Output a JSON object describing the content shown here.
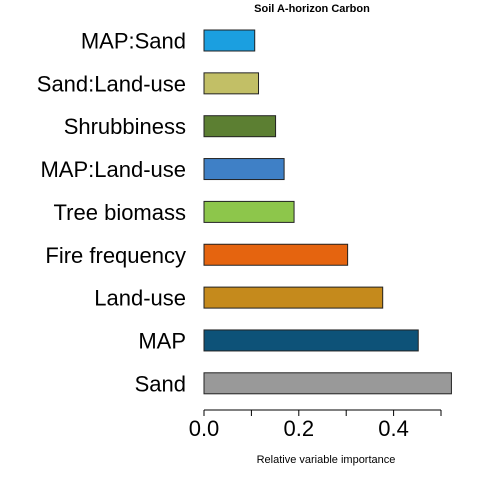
{
  "chart_data": {
    "type": "bar",
    "orientation": "horizontal",
    "title": "Soil A-horizon Carbon",
    "xlabel": "Relative variable importance",
    "ylabel": "",
    "xlim": [
      0,
      0.52
    ],
    "xticks": [
      0.0,
      0.1,
      0.2,
      0.3,
      0.4,
      0.5
    ],
    "xtick_labels": [
      "0.0",
      "",
      "0.2",
      "",
      "0.4",
      ""
    ],
    "categories": [
      "MAP:Sand",
      "Sand:Land-use",
      "Shrubbiness",
      "MAP:Land-use",
      "Tree biomass",
      "Fire frequency",
      "Land-use",
      "MAP",
      "Sand"
    ],
    "values": [
      0.107,
      0.115,
      0.151,
      0.169,
      0.19,
      0.303,
      0.377,
      0.452,
      0.522
    ],
    "colors": [
      "#1b9fe0",
      "#c2bf66",
      "#5c7f32",
      "#3f80c6",
      "#8dc64b",
      "#e5640f",
      "#c58a1c",
      "#0d5278",
      "#999999"
    ],
    "grid": false,
    "legend": "none"
  }
}
